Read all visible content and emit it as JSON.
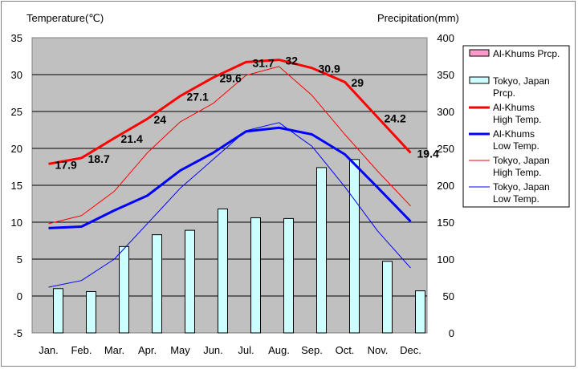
{
  "chart_data": {
    "type": "bar+line",
    "left_axis_label": "Temperature(℃)",
    "right_axis_label": "Precipitation(mm)",
    "left_ylim": [
      -5,
      35
    ],
    "left_ticks": [
      -5,
      0,
      5,
      10,
      15,
      20,
      25,
      30,
      35
    ],
    "right_ylim": [
      0,
      400
    ],
    "right_ticks": [
      0,
      50,
      100,
      150,
      200,
      250,
      300,
      350,
      400
    ],
    "categories": [
      "Jan.",
      "Feb.",
      "Mar.",
      "Apr.",
      "May",
      "Jun.",
      "Jul.",
      "Aug.",
      "Sep.",
      "Oct.",
      "Nov.",
      "Dec."
    ],
    "grid": true,
    "legend_position": "right",
    "bar_series": [
      {
        "name": "Al-Khums Prcp.",
        "axis": "right",
        "color": "#ff99cc",
        "values": [
          0,
          0,
          0,
          0,
          0,
          0,
          0,
          0,
          0,
          0,
          0,
          0
        ]
      },
      {
        "name": "Tokyo, Japan Prcp.",
        "axis": "right",
        "color": "#ccffff",
        "values": [
          60,
          56,
          117,
          133,
          139,
          168,
          156,
          155,
          224,
          235,
          97,
          57
        ]
      }
    ],
    "line_series": [
      {
        "name": "Al-Khums High Temp.",
        "axis": "left",
        "color": "#ff0000",
        "width": 3,
        "labels": true,
        "values": [
          17.9,
          18.7,
          21.4,
          24,
          27.1,
          29.6,
          31.7,
          32,
          30.9,
          29,
          24.2,
          19.4
        ],
        "value_labels": [
          "17.9",
          "18.7",
          "21.4",
          "24",
          "27.1",
          "29.6",
          "31.7",
          "32",
          "30.9",
          "29",
          "24.2",
          "19.4"
        ]
      },
      {
        "name": "Al-Khums Low Temp.",
        "axis": "left",
        "color": "#0000ff",
        "width": 3,
        "labels": false,
        "values": [
          9.2,
          9.4,
          11.6,
          13.6,
          17,
          19.4,
          22.3,
          22.8,
          21.9,
          19.2,
          14.7,
          10.1
        ]
      },
      {
        "name": "Tokyo, Japan High Temp.",
        "axis": "left",
        "color": "#ff0000",
        "width": 1,
        "labels": false,
        "values": [
          9.8,
          10.9,
          14.2,
          19.4,
          23.6,
          26.1,
          29.9,
          31.1,
          27.2,
          21.9,
          16.9,
          12.2
        ]
      },
      {
        "name": "Tokyo, Japan Low Temp.",
        "axis": "left",
        "color": "#0000ff",
        "width": 1,
        "labels": false,
        "values": [
          1.2,
          2.1,
          5,
          9.8,
          14.6,
          18.5,
          22.4,
          23.5,
          20.3,
          14.8,
          8.8,
          3.8
        ]
      }
    ]
  },
  "legend": [
    {
      "kind": "bar",
      "color": "#ff99cc",
      "lines": [
        "Al-Khums Prcp."
      ]
    },
    {
      "kind": "bar",
      "color": "#ccffff",
      "lines": [
        "Tokyo, Japan",
        "Prcp."
      ]
    },
    {
      "kind": "line",
      "color": "#ff0000",
      "width": 3,
      "lines": [
        "Al-Khums",
        "High Temp."
      ]
    },
    {
      "kind": "line",
      "color": "#0000ff",
      "width": 3,
      "lines": [
        "Al-Khums",
        "Low Temp."
      ]
    },
    {
      "kind": "line",
      "color": "#ff0000",
      "width": 1,
      "lines": [
        "Tokyo, Japan",
        "High Temp."
      ]
    },
    {
      "kind": "line",
      "color": "#0000ff",
      "width": 1,
      "lines": [
        "Tokyo, Japan",
        "Low Temp."
      ]
    }
  ]
}
